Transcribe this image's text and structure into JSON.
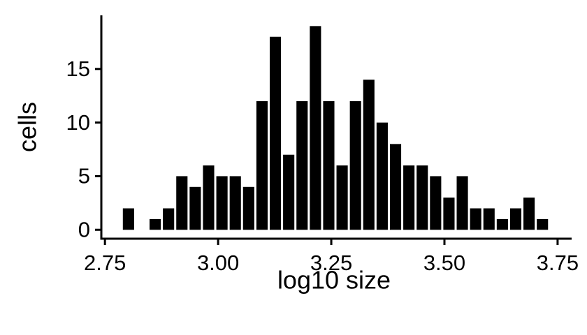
{
  "chart_data": {
    "type": "histogram",
    "x_label": "log10 size",
    "y_label": "cells",
    "bins": [
      2.788,
      2.8175,
      2.847,
      2.8765,
      2.906,
      2.9355,
      2.965,
      2.9945,
      3.024,
      3.0535,
      3.083,
      3.1125,
      3.142,
      3.1715,
      3.201,
      3.2305,
      3.26,
      3.2895,
      3.319,
      3.3485,
      3.378,
      3.4075,
      3.437,
      3.4665,
      3.496,
      3.5255,
      3.555,
      3.5845,
      3.614,
      3.6435,
      3.673,
      3.7025,
      3.732
    ],
    "values": [
      2,
      0,
      1,
      2,
      5,
      4,
      6,
      5,
      5,
      4,
      12,
      18,
      7,
      12,
      19,
      12,
      6,
      12,
      14,
      10,
      8,
      6,
      6,
      5,
      3,
      5,
      2,
      2,
      1,
      2,
      3,
      1
    ],
    "color": "#000000",
    "xlim": [
      2.742,
      3.781
    ],
    "xticks": [
      2.75,
      {
        "value": 3,
        "label": "3.00"
      },
      3.25,
      {
        "value": 3.5,
        "label": "3.50"
      },
      3.75
    ],
    "ylim": [
      -0.7,
      20
    ],
    "yticks": [
      0,
      5,
      10,
      15
    ]
  }
}
